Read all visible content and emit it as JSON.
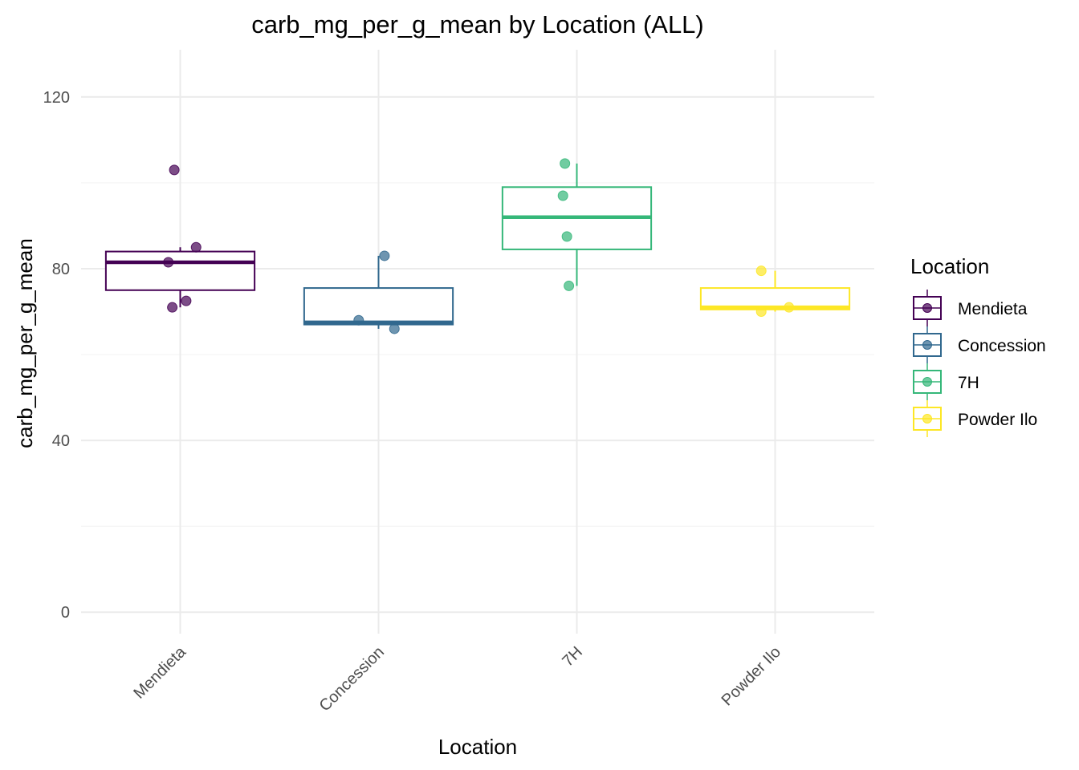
{
  "chart_data": {
    "type": "box",
    "title": "carb_mg_per_g_mean by Location (ALL)",
    "xlabel": "Location",
    "ylabel": "carb_mg_per_g_mean",
    "ylim": [
      -5,
      131
    ],
    "yticks": [
      0,
      40,
      80,
      120
    ],
    "grid": true,
    "legend_title": "Location",
    "legend_position": "right",
    "categories": [
      "Mendieta",
      "Concession",
      "7H",
      "Powder Ilo"
    ],
    "colors": {
      "Mendieta": "#440154",
      "Concession": "#31688E",
      "7H": "#35B779",
      "Powder Ilo": "#FDE725"
    },
    "boxes": [
      {
        "category": "Mendieta",
        "whisker_low": 71.0,
        "q1": 75.0,
        "median": 81.5,
        "q3": 84.0,
        "whisker_high": 85.0
      },
      {
        "category": "Concession",
        "whisker_low": 66.0,
        "q1": 67.0,
        "median": 67.5,
        "q3": 75.5,
        "whisker_high": 83.0
      },
      {
        "category": "7H",
        "whisker_low": 76.0,
        "q1": 84.5,
        "median": 92.0,
        "q3": 99.0,
        "whisker_high": 104.5
      },
      {
        "category": "Powder Ilo",
        "whisker_low": 70.0,
        "q1": 70.5,
        "median": 71.0,
        "q3": 75.5,
        "whisker_high": 79.5
      }
    ],
    "points": [
      {
        "category": "Mendieta",
        "jitter": -0.03,
        "y": 103.0
      },
      {
        "category": "Mendieta",
        "jitter": 0.08,
        "y": 85.0
      },
      {
        "category": "Mendieta",
        "jitter": -0.06,
        "y": 81.5
      },
      {
        "category": "Mendieta",
        "jitter": 0.03,
        "y": 72.5
      },
      {
        "category": "Mendieta",
        "jitter": -0.04,
        "y": 71.0
      },
      {
        "category": "Concession",
        "jitter": 0.03,
        "y": 83.0
      },
      {
        "category": "Concession",
        "jitter": -0.1,
        "y": 68.0
      },
      {
        "category": "Concession",
        "jitter": 0.08,
        "y": 66.0
      },
      {
        "category": "7H",
        "jitter": -0.06,
        "y": 104.5
      },
      {
        "category": "7H",
        "jitter": -0.07,
        "y": 97.0
      },
      {
        "category": "7H",
        "jitter": -0.05,
        "y": 87.5
      },
      {
        "category": "7H",
        "jitter": -0.04,
        "y": 76.0
      },
      {
        "category": "Powder Ilo",
        "jitter": -0.07,
        "y": 79.5
      },
      {
        "category": "Powder Ilo",
        "jitter": 0.07,
        "y": 71.0
      },
      {
        "category": "Powder Ilo",
        "jitter": -0.07,
        "y": 70.0
      }
    ]
  }
}
